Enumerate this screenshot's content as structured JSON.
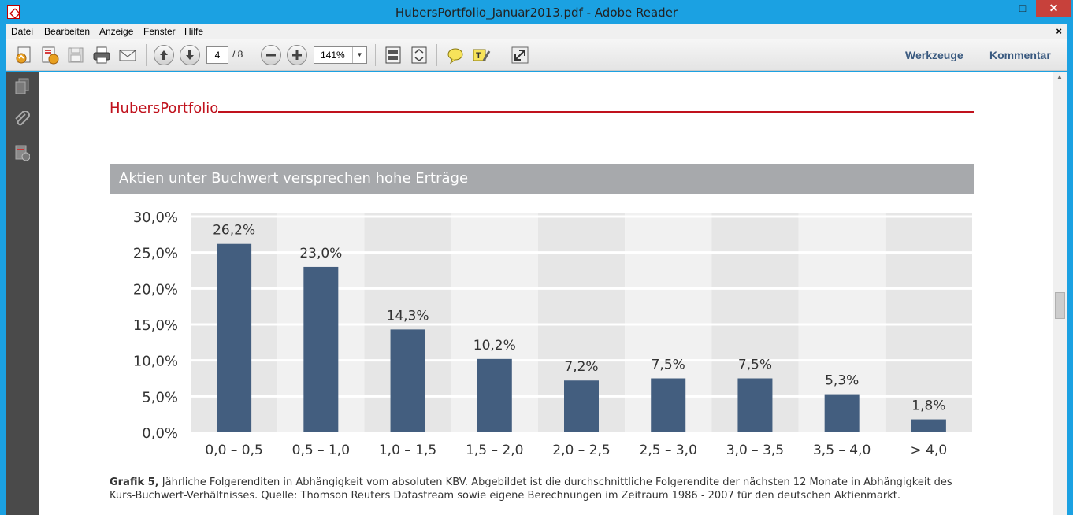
{
  "window": {
    "title": "HubersPortfolio_Januar2013.pdf - Adobe Reader",
    "minimize": "–",
    "maximize": "□",
    "close": "✕"
  },
  "menubar": {
    "items": [
      "Datei",
      "Bearbeiten",
      "Anzeige",
      "Fenster",
      "Hilfe"
    ],
    "close": "×"
  },
  "toolbar": {
    "current_page": "4",
    "total_pages": "/ 8",
    "zoom": "141%",
    "tools_label": "Werkzeuge",
    "comment_label": "Kommentar"
  },
  "document": {
    "brand": "HubersPortfolio",
    "brand_color": "#c0121d",
    "chart_header": "Aktien unter Buchwert versprechen hohe Erträge",
    "caption_bold": "Grafik 5,",
    "caption_text": " Jährliche Folgerenditen in Abhängigkeit vom absoluten KBV. Abgebildet ist die durchschnittliche Folgerendite der nächsten 12 Monate in Abhängigkeit des Kurs-Buchwert-Verhältnisses. Quelle: Thomson Reuters Datastream sowie eigene Berechnungen im Zeitraum 1986 - 2007 für den deutschen Aktienmarkt."
  },
  "chart_data": {
    "type": "bar",
    "categories": [
      "0,0 – 0,5",
      "0,5 – 1,0",
      "1,0 – 1,5",
      "1,5 – 2,0",
      "2,0 – 2,5",
      "2,5 – 3,0",
      "3,0 – 3,5",
      "3,5 – 4,0",
      "> 4,0"
    ],
    "values": [
      26.2,
      23.0,
      14.3,
      10.2,
      7.2,
      7.5,
      7.5,
      5.3,
      1.8
    ],
    "value_labels": [
      "26,2%",
      "23,0%",
      "14,3%",
      "10,2%",
      "7,2%",
      "7,5%",
      "7,5%",
      "5,3%",
      "1,8%"
    ],
    "yticks": [
      "0,0%",
      "5,0%",
      "10,0%",
      "15,0%",
      "20,0%",
      "25,0%",
      "30,0%"
    ],
    "ylim": [
      0,
      30
    ],
    "title": "Aktien unter Buchwert versprechen hohe Erträge",
    "xlabel": "",
    "ylabel": "",
    "grid": true,
    "bar_color": "#435e7f",
    "band_colors": [
      "#e6e6e6",
      "#f1f1f1"
    ]
  }
}
